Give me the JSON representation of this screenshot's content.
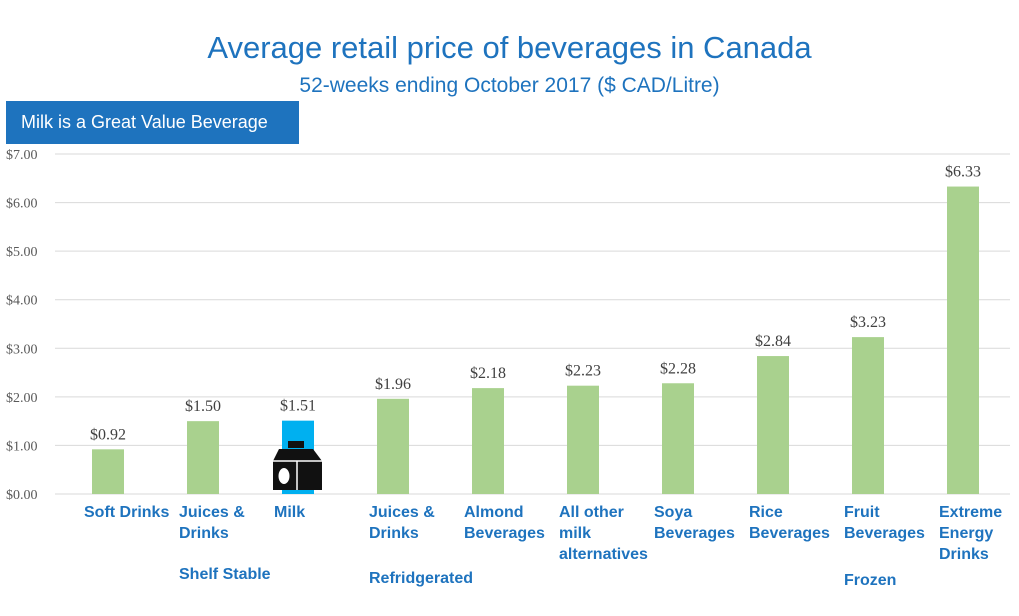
{
  "header": {
    "title": "Average retail price of beverages in Canada",
    "subtitle": "52-weeks ending October 2017 ($ CAD/Litre)"
  },
  "banner": {
    "label": "Milk is a Great Value Beverage"
  },
  "colors": {
    "bar": "#a9d18e",
    "highlight": "#00b0f0",
    "title": "#1e73be",
    "grid": "#d9d9d9"
  },
  "icon": "milk-carton-icon",
  "chart_data": {
    "type": "bar",
    "title": "Average retail price of beverages in Canada",
    "subtitle": "52-weeks ending October 2017 ($ CAD/Litre)",
    "categories": [
      "Soft Drinks",
      "Juices & Drinks",
      "Milk",
      "Juices & Drinks",
      "Almond Beverages",
      "All other milk alternatives",
      "Soya Beverages",
      "Rice Beverages",
      "Fruit Beverages",
      "Extreme Energy Drinks"
    ],
    "category_groups": [
      "",
      "Shelf Stable",
      "",
      "Refridgerated",
      "",
      "",
      "",
      "",
      "Frozen",
      ""
    ],
    "values": [
      0.92,
      1.5,
      1.51,
      1.96,
      2.18,
      2.23,
      2.28,
      2.84,
      3.23,
      6.33
    ],
    "data_labels": [
      "$0.92",
      "$1.50",
      "$1.51",
      "$1.96",
      "$2.18",
      "$2.23",
      "$2.28",
      "$2.84",
      "$3.23",
      "$6.33"
    ],
    "y_ticks": [
      "$0.00",
      "$1.00",
      "$2.00",
      "$3.00",
      "$4.00",
      "$5.00",
      "$6.00",
      "$7.00"
    ],
    "ylim": [
      0,
      7
    ],
    "highlight_category": "Milk",
    "grid": true
  }
}
